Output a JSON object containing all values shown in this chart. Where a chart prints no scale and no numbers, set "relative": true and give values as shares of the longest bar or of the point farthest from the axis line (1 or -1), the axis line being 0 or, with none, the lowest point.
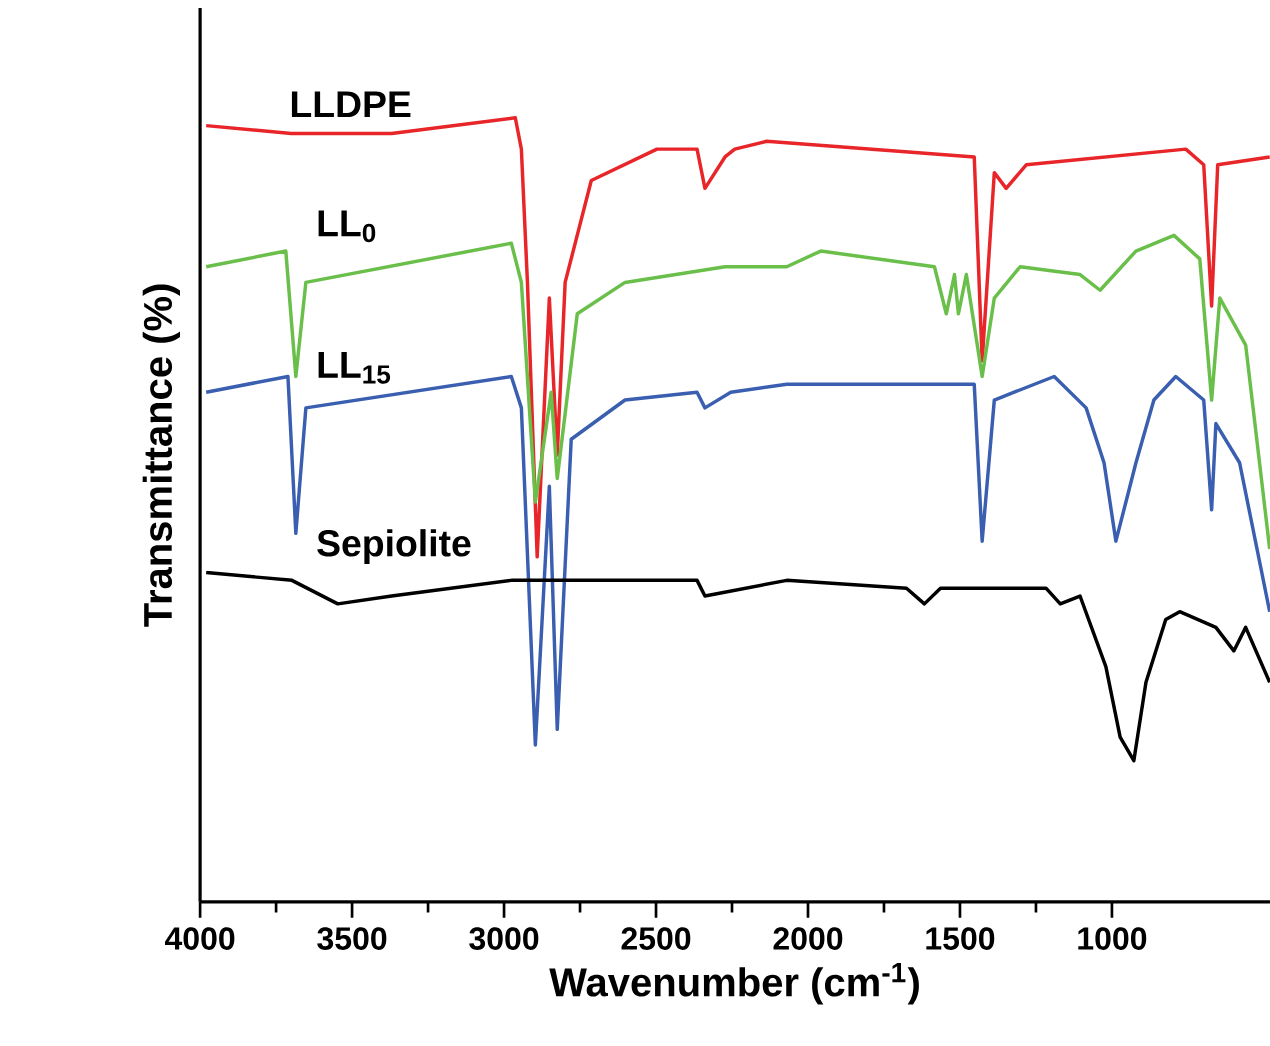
{
  "chart_data": {
    "type": "line",
    "relative": true,
    "xlabel": "Wavenumber (cm$^{-1}$)",
    "ylabel": "Transmittance (%)",
    "xlim": [
      4000,
      480
    ],
    "xticks": [
      4000,
      3500,
      3000,
      2500,
      2000,
      1500,
      1000
    ],
    "tick_labels": "x",
    "grid": false,
    "series": [
      {
        "name": "LLDPE",
        "color": "#e8262a",
        "x": [
          3980,
          3700,
          3370,
          2963,
          2943,
          2923,
          2891,
          2851,
          2825,
          2799,
          2713,
          2497,
          2365,
          2339,
          2273,
          2241,
          2136,
          1453,
          1427,
          1387,
          1348,
          1282,
          757,
          698,
          672,
          652,
          481
        ],
        "values": [
          0.99,
          0.98,
          0.98,
          1.0,
          0.96,
          0.79,
          0.44,
          0.77,
          0.57,
          0.79,
          0.92,
          0.96,
          0.96,
          0.91,
          0.95,
          0.96,
          0.97,
          0.95,
          0.69,
          0.93,
          0.91,
          0.94,
          0.96,
          0.94,
          0.76,
          0.94,
          0.95
        ]
      },
      {
        "name": "LL$_{0}$",
        "color": "#6abf4b",
        "x": [
          3980,
          3718,
          3685,
          3652,
          2976,
          2943,
          2897,
          2845,
          2825,
          2759,
          2602,
          2273,
          2070,
          1958,
          1584,
          1545,
          1518,
          1505,
          1479,
          1427,
          1387,
          1302,
          1105,
          1039,
          921,
          796,
          711,
          672,
          645,
          560,
          481
        ],
        "values": [
          0.81,
          0.83,
          0.67,
          0.79,
          0.84,
          0.79,
          0.51,
          0.65,
          0.54,
          0.75,
          0.79,
          0.81,
          0.81,
          0.83,
          0.81,
          0.75,
          0.8,
          0.75,
          0.8,
          0.67,
          0.77,
          0.81,
          0.8,
          0.78,
          0.83,
          0.85,
          0.82,
          0.64,
          0.77,
          0.71,
          0.45
        ]
      },
      {
        "name": "LL$_{15}$",
        "color": "#3a5fb0",
        "x": [
          3980,
          3711,
          3685,
          3652,
          2976,
          2943,
          2897,
          2851,
          2825,
          2779,
          2602,
          2365,
          2339,
          2254,
          2070,
          1453,
          1427,
          1387,
          1190,
          1085,
          1026,
          987,
          954,
          921,
          862,
          790,
          698,
          672,
          658,
          580,
          481
        ],
        "values": [
          0.65,
          0.67,
          0.47,
          0.63,
          0.67,
          0.63,
          0.2,
          0.53,
          0.22,
          0.59,
          0.64,
          0.65,
          0.63,
          0.65,
          0.66,
          0.66,
          0.46,
          0.64,
          0.67,
          0.63,
          0.56,
          0.46,
          0.51,
          0.56,
          0.64,
          0.67,
          0.64,
          0.5,
          0.61,
          0.56,
          0.37
        ]
      },
      {
        "name": "Sepiolite",
        "color": "#000000",
        "x": [
          3980,
          3698,
          3547,
          3370,
          2976,
          2365,
          2339,
          2070,
          1676,
          1617,
          1564,
          1217,
          1170,
          1105,
          1020,
          973,
          928,
          888,
          823,
          777,
          658,
          599,
          560,
          481
        ],
        "values": [
          0.42,
          0.41,
          0.38,
          0.39,
          0.41,
          0.41,
          0.39,
          0.41,
          0.4,
          0.38,
          0.4,
          0.4,
          0.38,
          0.39,
          0.3,
          0.21,
          0.18,
          0.28,
          0.36,
          0.37,
          0.35,
          0.32,
          0.35,
          0.28
        ]
      }
    ]
  }
}
